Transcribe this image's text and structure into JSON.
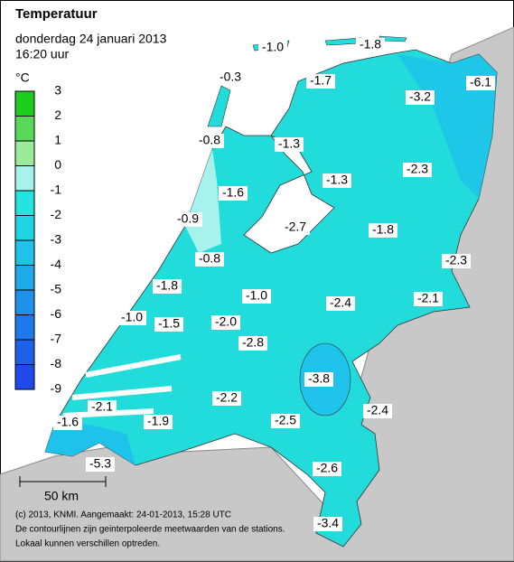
{
  "header": {
    "title": "Temperatuur",
    "date": "donderdag 24 januari 2013",
    "time": "16:20 uur"
  },
  "legend": {
    "unit": "°C",
    "ticks": [
      3,
      2,
      1,
      0,
      -1,
      -2,
      -3,
      -4,
      -5,
      -6,
      -7,
      -8,
      -9
    ],
    "lim": [
      -9,
      3
    ],
    "colors": [
      "#1ecc1e",
      "#5ad85a",
      "#9aeb9a",
      "#a8f2ee",
      "#24e4e0",
      "#20d4e4",
      "#1ec2ea",
      "#1eaaea",
      "#1e92ea",
      "#1e7aea",
      "#1e62ea",
      "#1e4aea"
    ]
  },
  "stations": [
    {
      "value": -1.0,
      "label": "-1.0"
    },
    {
      "value": -1.8,
      "label": "-1.8"
    },
    {
      "value": -0.3,
      "label": "-0.3"
    },
    {
      "value": -1.7,
      "label": "-1.7"
    },
    {
      "value": -6.1,
      "label": "-6.1"
    },
    {
      "value": -3.2,
      "label": "-3.2"
    },
    {
      "value": -0.8,
      "label": "-0.8"
    },
    {
      "value": -1.3,
      "label": "-1.3"
    },
    {
      "value": -2.3,
      "label": "-2.3"
    },
    {
      "value": -1.3,
      "label": "-1.3"
    },
    {
      "value": -1.6,
      "label": "-1.6"
    },
    {
      "value": -0.9,
      "label": "-0.9"
    },
    {
      "value": -2.7,
      "label": "-2.7"
    },
    {
      "value": -1.8,
      "label": "-1.8"
    },
    {
      "value": -0.8,
      "label": "-0.8"
    },
    {
      "value": -2.3,
      "label": "-2.3"
    },
    {
      "value": -1.8,
      "label": "-1.8"
    },
    {
      "value": -1.0,
      "label": "-1.0"
    },
    {
      "value": -2.1,
      "label": "-2.1"
    },
    {
      "value": -2.4,
      "label": "-2.4"
    },
    {
      "value": -1.0,
      "label": "-1.0"
    },
    {
      "value": -1.5,
      "label": "-1.5"
    },
    {
      "value": -2.0,
      "label": "-2.0"
    },
    {
      "value": -2.8,
      "label": "-2.8"
    },
    {
      "value": -3.8,
      "label": "-3.8"
    },
    {
      "value": -2.2,
      "label": "-2.2"
    },
    {
      "value": -2.1,
      "label": "-2.1"
    },
    {
      "value": -2.4,
      "label": "-2.4"
    },
    {
      "value": -1.6,
      "label": "-1.6"
    },
    {
      "value": -1.9,
      "label": "-1.9"
    },
    {
      "value": -2.5,
      "label": "-2.5"
    },
    {
      "value": -5.3,
      "label": "-5.3"
    },
    {
      "value": -2.6,
      "label": "-2.6"
    },
    {
      "value": -3.4,
      "label": "-3.4"
    }
  ],
  "scale": "50 km",
  "footer": [
    "(c) 2013, KNMI. Aangemaakt: 24-01-2013, 15:28 UTC",
    "De contourlijnen zijn geinterpoleerde meetwaarden van de stations.",
    "Lokaal kunnen verschillen optreden."
  ]
}
